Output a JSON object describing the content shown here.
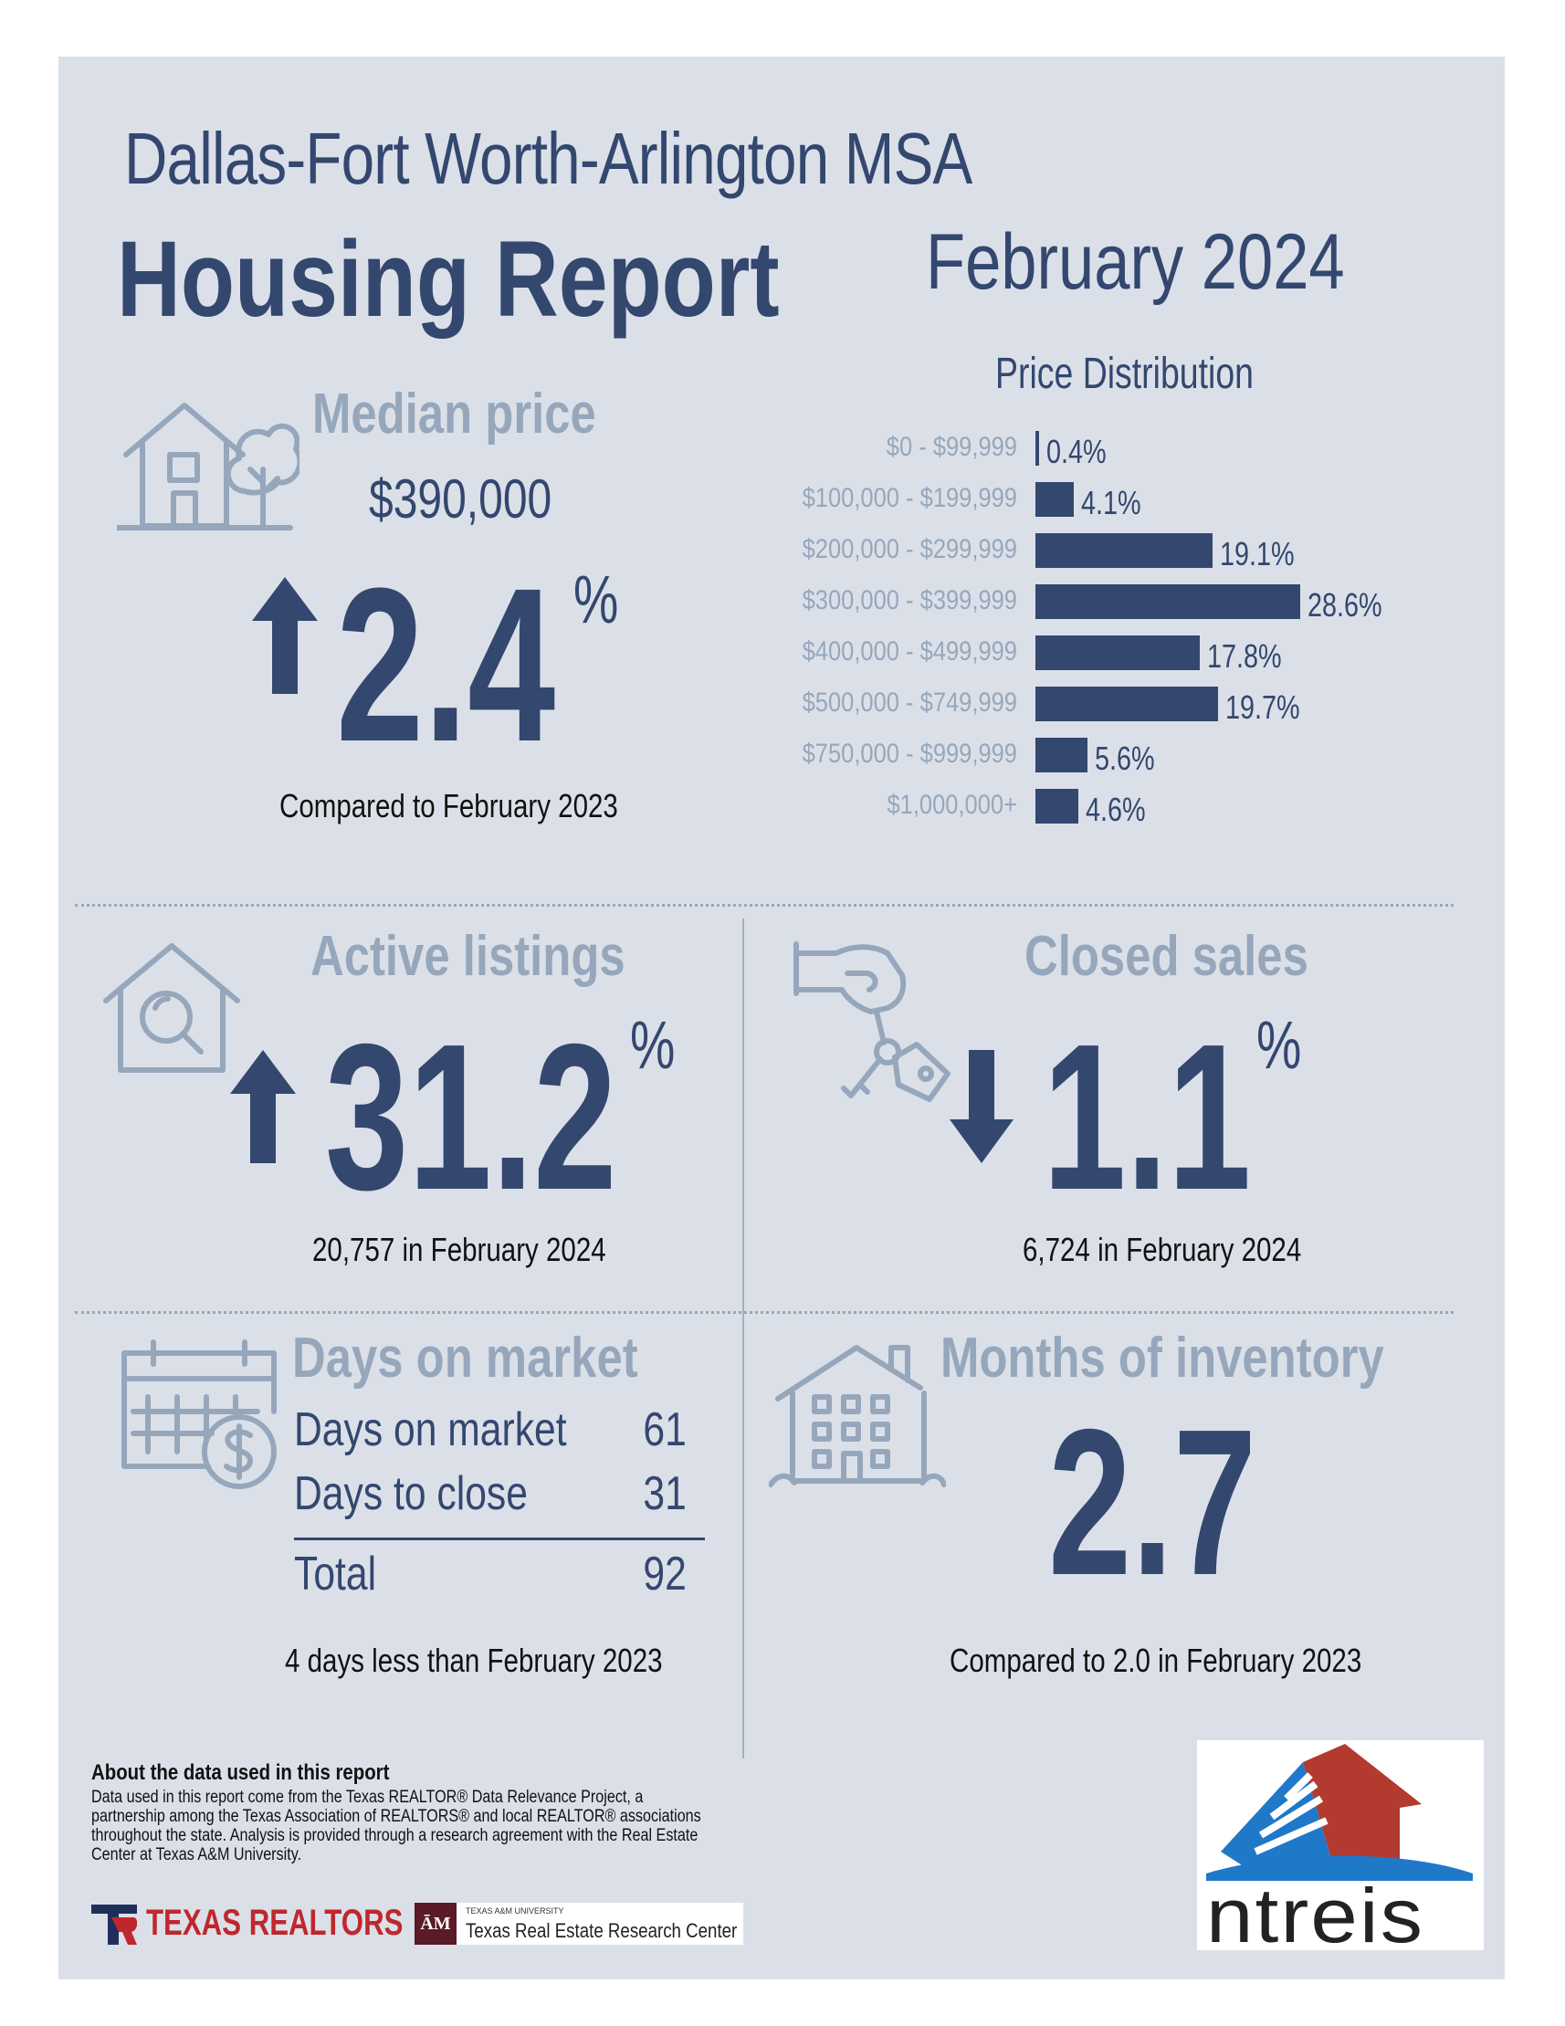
{
  "header": {
    "region": "Dallas-Fort Worth-Arlington MSA",
    "title": "Housing Report",
    "date": "February 2024"
  },
  "median_price": {
    "heading": "Median price",
    "value": "$390,000",
    "change": "2.4",
    "unit": "%",
    "direction": "up",
    "note": "Compared to February 2023",
    "icon": "house-tree-icon"
  },
  "price_distribution": {
    "title": "Price Distribution",
    "max_value": 28.6,
    "rows": [
      {
        "label": "$0 - $99,999",
        "value": 0.4,
        "display": "0.4%"
      },
      {
        "label": "$100,000 - $199,999",
        "value": 4.1,
        "display": "4.1%"
      },
      {
        "label": "$200,000 - $299,999",
        "value": 19.1,
        "display": "19.1%"
      },
      {
        "label": "$300,000 - $399,999",
        "value": 28.6,
        "display": "28.6%"
      },
      {
        "label": "$400,000 - $499,999",
        "value": 17.8,
        "display": "17.8%"
      },
      {
        "label": "$500,000 - $749,999",
        "value": 19.7,
        "display": "19.7%"
      },
      {
        "label": "$750,000 - $999,999",
        "value": 5.6,
        "display": "5.6%"
      },
      {
        "label": "$1,000,000+",
        "value": 4.6,
        "display": "4.6%"
      }
    ]
  },
  "active_listings": {
    "heading": "Active listings",
    "change": "31.2",
    "unit": "%",
    "direction": "up",
    "note": "20,757 in February 2024",
    "icon": "house-search-icon"
  },
  "closed_sales": {
    "heading": "Closed sales",
    "change": "1.1",
    "unit": "%",
    "direction": "down",
    "note": "6,724 in February 2024",
    "icon": "hand-keys-icon"
  },
  "days_on_market": {
    "heading": "Days on market",
    "rows": [
      {
        "label": "Days on market",
        "value": "61"
      },
      {
        "label": "Days to close",
        "value": "31"
      }
    ],
    "total": {
      "label": "Total",
      "value": "92"
    },
    "note": "4 days less than February 2023",
    "icon": "calendar-dollar-icon"
  },
  "months_inventory": {
    "heading": "Months of inventory",
    "value": "2.7",
    "note": "Compared to 2.0 in February 2023",
    "icon": "apartment-building-icon"
  },
  "footer": {
    "about_heading": "About the data used in this report",
    "about_text": "Data used in this report come from the Texas REALTOR® Data Relevance Project, a partnership among the Texas Association of REALTORS® and local REALTOR® associations throughout the state. Analysis is provided through a research agreement with the Real Estate Center at Texas A&M University.",
    "logo_texas_realtors": "TEXAS REALTORS",
    "logo_tamu_small": "TEXAS A&M UNIVERSITY",
    "logo_tamu": "Texas Real Estate Research Center",
    "logo_ntreis": "ntreis"
  },
  "colors": {
    "navy": "#33476f",
    "pale": "#96a7bc",
    "background": "#dbe0e8"
  }
}
